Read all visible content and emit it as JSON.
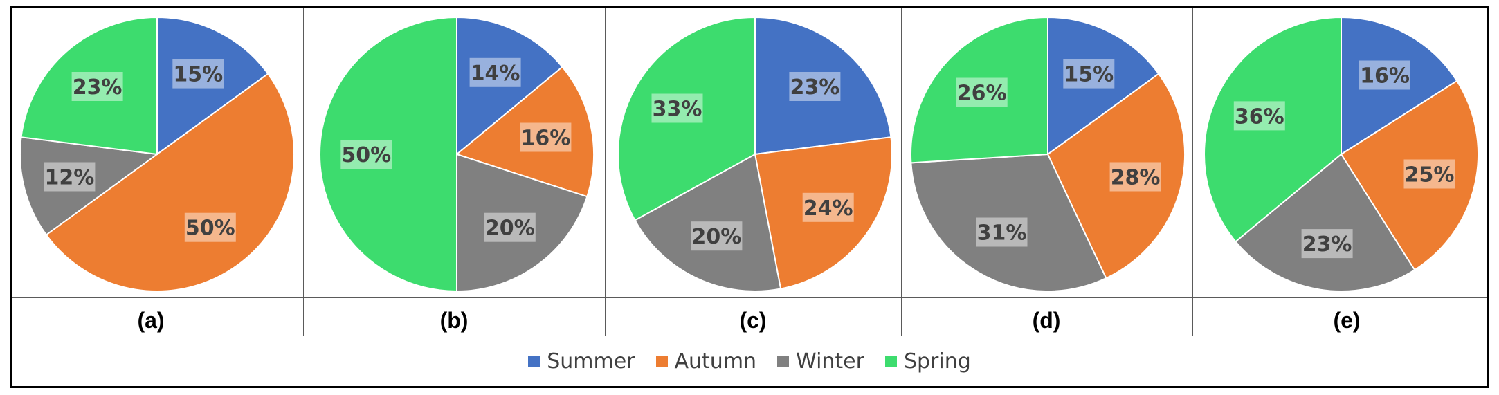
{
  "chart_data": [
    {
      "type": "pie",
      "title": "(a)",
      "categories": [
        "Summer",
        "Autumn",
        "Winter",
        "Spring"
      ],
      "values": [
        15,
        50,
        12,
        23
      ],
      "labels": [
        "15%",
        "50%",
        "12%",
        "23%"
      ]
    },
    {
      "type": "pie",
      "title": "(b)",
      "categories": [
        "Summer",
        "Autumn",
        "Winter",
        "Spring"
      ],
      "values": [
        14,
        16,
        20,
        50
      ],
      "labels": [
        "14%",
        "16%",
        "20%",
        "50%"
      ]
    },
    {
      "type": "pie",
      "title": "(c)",
      "categories": [
        "Summer",
        "Autumn",
        "Winter",
        "Spring"
      ],
      "values": [
        23,
        24,
        20,
        33
      ],
      "labels": [
        "23%",
        "24%",
        "20%",
        "33%"
      ]
    },
    {
      "type": "pie",
      "title": "(d)",
      "categories": [
        "Summer",
        "Autumn",
        "Winter",
        "Spring"
      ],
      "values": [
        15,
        28,
        31,
        26
      ],
      "labels": [
        "15%",
        "28%",
        "31%",
        "26%"
      ]
    },
    {
      "type": "pie",
      "title": "(e)",
      "categories": [
        "Summer",
        "Autumn",
        "Winter",
        "Spring"
      ],
      "values": [
        16,
        25,
        23,
        36
      ],
      "labels": [
        "16%",
        "25%",
        "23%",
        "36%"
      ]
    }
  ],
  "legend": {
    "placement": "bottom",
    "entries": [
      {
        "label": "Summer",
        "color": "#4472C4"
      },
      {
        "label": "Autumn",
        "color": "#ED7D31"
      },
      {
        "label": "Winter",
        "color": "#808080"
      },
      {
        "label": "Spring",
        "color": "#3DDC6E"
      }
    ]
  }
}
